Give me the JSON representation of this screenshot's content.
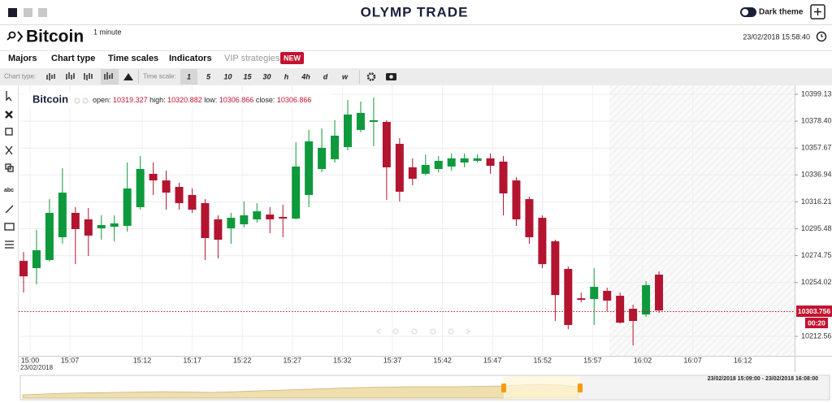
{
  "header": {
    "logo": "OLYMP TRADE",
    "theme_toggle": "Dark theme"
  },
  "instrument": {
    "name": "Bitcoin",
    "timeframe": "1 minute",
    "datetime": "23/02/2018 15:58:40"
  },
  "menu": [
    "Majors",
    "Chart type",
    "Time scales",
    "Indicators",
    "VIP strategies"
  ],
  "menu_badge": "NEW",
  "toolbar": {
    "chart_type_label": "Chart type:",
    "time_scale_label": "Time scale:",
    "time_scales": [
      "1",
      "5",
      "10",
      "15",
      "30",
      "h",
      "4h",
      "d",
      "w"
    ]
  },
  "left_tools_text": "abc",
  "price_tag": "10303.756",
  "countdown": "00:20",
  "navigator_range": "23/02/2018 15:09:00 - 23/02/2018 16:08:00",
  "chart_data": {
    "type": "candlestick",
    "title": "Bitcoin",
    "ohlc_labels": [
      "open:",
      "high:",
      "low:",
      "close:"
    ],
    "ohlc_values": [
      10319.327,
      10320.882,
      10306.866,
      10306.866
    ],
    "time_labels": [
      "15:00",
      "15:07",
      "15:12",
      "15:17",
      "15:22",
      "15:27",
      "15:32",
      "15:37",
      "15:42",
      "15:47",
      "15:52",
      "15:57",
      "16:02",
      "16:07",
      "16:12"
    ],
    "date_label": "23/02/2018",
    "up_color": "#0e9a3c",
    "down_color": "#b3142f",
    "open": [
      10270.7,
      10265.1,
      10271.4,
      10288.9,
      10307.7,
      10302.7,
      10295.8,
      10297.0,
      10297.7,
      10312.1,
      10337.8,
      10332.7,
      10327.7,
      10321.5,
      10315.2,
      10302.7,
      10295.8,
      10298.9,
      10302.7,
      10306.4,
      10304.6,
      10303.3,
      10321.5,
      10341.5,
      10349.0,
      10358.4,
      10371.6,
      10377.8,
      10377.8,
      10360.9,
      10342.8,
      10337.8,
      10341.5,
      10343.4,
      10346.5,
      10347.8,
      10349.7,
      10347.2,
      10332.7,
      10318.3,
      10303.9,
      10285.8,
      10264.5,
      10241.9,
      10241.3,
      10247.6,
      10243.8,
      10233.8,
      10229.4,
      10260.1
    ],
    "high": [
      10277.6,
      10294.5,
      10318.3,
      10342.1,
      10312.1,
      10311.5,
      10305.8,
      10305.8,
      10346.5,
      10351.5,
      10346.5,
      10340.3,
      10330.9,
      10326.5,
      10318.3,
      10305.8,
      10307.7,
      10316.5,
      10315.2,
      10312.1,
      10314.0,
      10362.2,
      10371.6,
      10372.8,
      10379.1,
      10394.7,
      10393.5,
      10396.6,
      10379.1,
      10365.3,
      10349.7,
      10352.8,
      10351.5,
      10353.4,
      10353.4,
      10352.8,
      10353.4,
      10351.5,
      10335.2,
      10320.2,
      10305.8,
      10287.0,
      10266.4,
      10246.3,
      10265.1,
      10250.1,
      10246.3,
      10236.9,
      10255.1,
      10262.6
    ],
    "low": [
      10246.3,
      10252.6,
      10270.1,
      10283.9,
      10268.2,
      10274.5,
      10287.0,
      10285.8,
      10293.3,
      10310.2,
      10321.5,
      10310.2,
      10310.2,
      10307.7,
      10271.4,
      10272.6,
      10283.9,
      10296.4,
      10300.2,
      10292.0,
      10288.9,
      10302.7,
      10312.1,
      10339.0,
      10346.5,
      10355.9,
      10369.7,
      10359.1,
      10317.7,
      10316.5,
      10329.0,
      10336.5,
      10339.0,
      10340.3,
      10342.8,
      10346.5,
      10337.8,
      10305.8,
      10297.7,
      10283.9,
      10265.1,
      10224.4,
      10218.1,
      10238.8,
      10221.3,
      10231.9,
      10222.5,
      10205.6,
      10227.5,
      10230.7
    ],
    "close": [
      10258.8,
      10278.9,
      10307.7,
      10323.3,
      10295.2,
      10290.2,
      10298.3,
      10299.6,
      10326.5,
      10341.5,
      10332.7,
      10323.3,
      10315.2,
      10310.2,
      10288.3,
      10287.0,
      10303.9,
      10305.8,
      10308.9,
      10302.7,
      10303.3,
      10343.4,
      10362.8,
      10357.8,
      10367.2,
      10383.5,
      10384.7,
      10379.1,
      10342.8,
      10324.0,
      10334.0,
      10344.6,
      10347.8,
      10349.7,
      10349.7,
      10349.7,
      10344.0,
      10322.7,
      10302.7,
      10288.9,
      10268.2,
      10244.4,
      10221.3,
      10240.7,
      10250.7,
      10240.1,
      10223.1,
      10224.4,
      10252.0,
      10232.5
    ],
    "ylim": [
      10197.5,
      10406.0
    ],
    "yticks": [
      10399.13,
      {
        "value": 10378.4,
        "label": "10378.40"
      },
      10357.67,
      10336.94,
      10316.21,
      10295.48,
      10274.75,
      10254.02,
      10212.56
    ],
    "grid": true
  }
}
